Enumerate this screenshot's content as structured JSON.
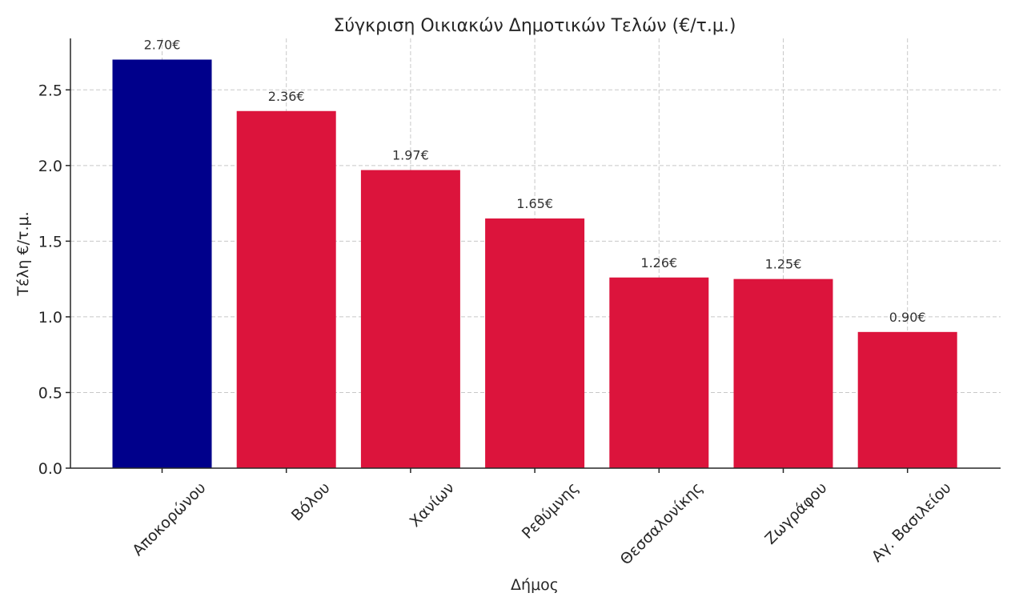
{
  "chart_data": {
    "type": "bar",
    "title": "Σύγκριση Οικιακών Δημοτικών Τελών (€/τ.μ.)",
    "xlabel": "Δήμος",
    "ylabel": "Τέλη €/τ.μ.",
    "categories": [
      "Αποκορώνου",
      "Βόλου",
      "Χανίων",
      "Ρεθύμνης",
      "Θεσσαλονίκης",
      "Ζωγράφου",
      "Αγ. Βασιλείου"
    ],
    "values": [
      2.7,
      2.36,
      1.97,
      1.65,
      1.26,
      1.25,
      0.9
    ],
    "value_labels": [
      "2.70€",
      "2.36€",
      "1.97€",
      "1.65€",
      "1.26€",
      "1.25€",
      "0.90€"
    ],
    "bar_colors": [
      "#00008b",
      "#dc143c",
      "#dc143c",
      "#dc143c",
      "#dc143c",
      "#dc143c",
      "#dc143c"
    ],
    "ylim": [
      0,
      2.84
    ],
    "yticks": [
      0.0,
      0.5,
      1.0,
      1.5,
      2.0,
      2.5
    ],
    "ytick_labels": [
      "0.0",
      "0.5",
      "1.0",
      "1.5",
      "2.0",
      "2.5"
    ],
    "grid": true
  }
}
